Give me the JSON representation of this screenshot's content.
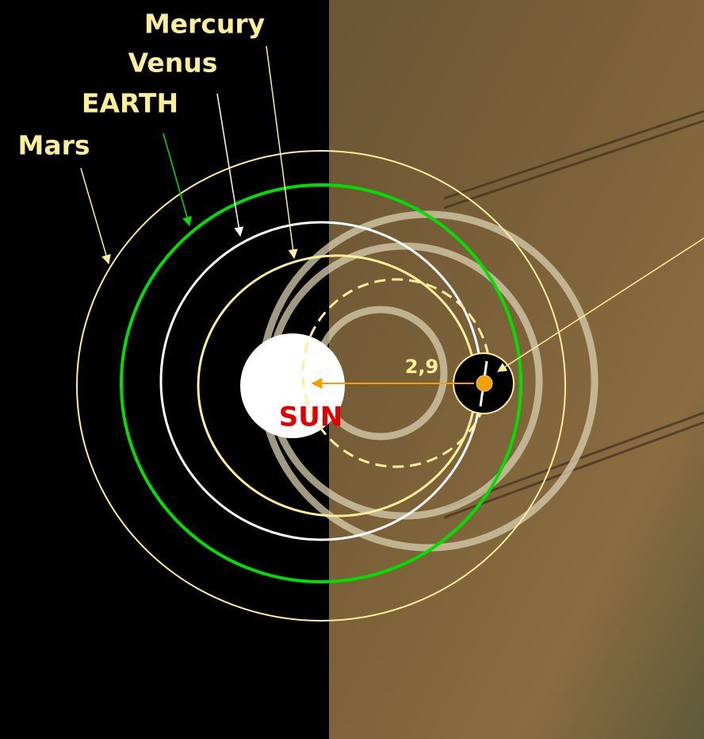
{
  "labels": {
    "mercury": "Mercury",
    "venus": "Venus",
    "earth": "EARTH",
    "mars": "Mars",
    "sun": "SUN",
    "distance": "2,9"
  }
}
